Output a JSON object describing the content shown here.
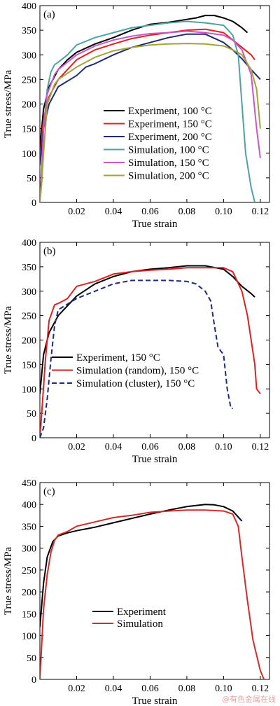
{
  "watermark": "@有色金属在线",
  "chart_data": [
    {
      "type": "line",
      "panel_label": "(a)",
      "xlabel": "True strain",
      "ylabel": "True stress/MPa",
      "xlim": [
        0,
        0.125
      ],
      "ylim": [
        0,
        400
      ],
      "x_ticks": [
        0.02,
        0.04,
        0.06,
        0.08,
        0.1,
        0.12
      ],
      "x_tick_labels": [
        "0.02",
        "0.04",
        "0.06",
        "0.08",
        "0.10",
        "0.12"
      ],
      "y_ticks": [
        0,
        50,
        100,
        150,
        200,
        250,
        300,
        350,
        400
      ],
      "y_tick_labels": [
        "0",
        "50",
        "100",
        "150",
        "200",
        "250",
        "300",
        "350",
        "400"
      ],
      "legend_position": "center",
      "series": [
        {
          "name": "Experiment, 100 °C",
          "color": "#000000",
          "style": "solid",
          "points": [
            [
              0,
              110
            ],
            [
              0.002,
              190
            ],
            [
              0.005,
              235
            ],
            [
              0.01,
              270
            ],
            [
              0.015,
              290
            ],
            [
              0.02,
              305
            ],
            [
              0.03,
              322
            ],
            [
              0.04,
              335
            ],
            [
              0.05,
              350
            ],
            [
              0.06,
              362
            ],
            [
              0.07,
              366
            ],
            [
              0.08,
              372
            ],
            [
              0.085,
              375
            ],
            [
              0.09,
              380
            ],
            [
              0.095,
              380
            ],
            [
              0.1,
              375
            ],
            [
              0.105,
              368
            ],
            [
              0.11,
              355
            ],
            [
              0.113,
              345
            ]
          ]
        },
        {
          "name": "Experiment, 150 °C",
          "color": "#e02020",
          "style": "solid",
          "points": [
            [
              0,
              90
            ],
            [
              0.002,
              170
            ],
            [
              0.005,
              215
            ],
            [
              0.01,
              250
            ],
            [
              0.02,
              290
            ],
            [
              0.03,
              310
            ],
            [
              0.04,
              322
            ],
            [
              0.05,
              333
            ],
            [
              0.06,
              340
            ],
            [
              0.07,
              345
            ],
            [
              0.08,
              350
            ],
            [
              0.09,
              352
            ],
            [
              0.1,
              345
            ],
            [
              0.105,
              330
            ],
            [
              0.11,
              315
            ],
            [
              0.115,
              300
            ],
            [
              0.117,
              290
            ]
          ]
        },
        {
          "name": "Experiment, 200 °C",
          "color": "#1f2a7a",
          "style": "solid",
          "points": [
            [
              0,
              75
            ],
            [
              0.002,
              150
            ],
            [
              0.005,
              200
            ],
            [
              0.01,
              235
            ],
            [
              0.02,
              258
            ],
            [
              0.025,
              275
            ],
            [
              0.03,
              282
            ],
            [
              0.04,
              300
            ],
            [
              0.05,
              315
            ],
            [
              0.06,
              325
            ],
            [
              0.07,
              335
            ],
            [
              0.08,
              342
            ],
            [
              0.09,
              342
            ],
            [
              0.1,
              325
            ],
            [
              0.105,
              310
            ],
            [
              0.11,
              292
            ],
            [
              0.115,
              270
            ],
            [
              0.12,
              250
            ]
          ]
        },
        {
          "name": "Simulation, 100 °C",
          "color": "#4fa3a3",
          "style": "solid",
          "points": [
            [
              0,
              0
            ],
            [
              0.001,
              60
            ],
            [
              0.002,
              150
            ],
            [
              0.004,
              230
            ],
            [
              0.006,
              265
            ],
            [
              0.008,
              280
            ],
            [
              0.01,
              285
            ],
            [
              0.015,
              300
            ],
            [
              0.02,
              320
            ],
            [
              0.03,
              335
            ],
            [
              0.04,
              345
            ],
            [
              0.05,
              355
            ],
            [
              0.06,
              360
            ],
            [
              0.07,
              365
            ],
            [
              0.08,
              368
            ],
            [
              0.09,
              365
            ],
            [
              0.1,
              360
            ],
            [
              0.105,
              340
            ],
            [
              0.108,
              300
            ],
            [
              0.11,
              200
            ],
            [
              0.112,
              100
            ],
            [
              0.115,
              30
            ],
            [
              0.117,
              0
            ]
          ]
        },
        {
          "name": "Simulation, 150 °C",
          "color": "#cc55cc",
          "style": "solid",
          "points": [
            [
              0,
              0
            ],
            [
              0.001,
              60
            ],
            [
              0.002,
              150
            ],
            [
              0.004,
              220
            ],
            [
              0.008,
              260
            ],
            [
              0.01,
              270
            ],
            [
              0.02,
              300
            ],
            [
              0.03,
              318
            ],
            [
              0.04,
              330
            ],
            [
              0.05,
              338
            ],
            [
              0.06,
              343
            ],
            [
              0.07,
              345
            ],
            [
              0.08,
              348
            ],
            [
              0.09,
              345
            ],
            [
              0.1,
              340
            ],
            [
              0.105,
              330
            ],
            [
              0.11,
              310
            ],
            [
              0.115,
              260
            ],
            [
              0.118,
              150
            ],
            [
              0.12,
              90
            ]
          ]
        },
        {
          "name": "Simulation, 200 °C",
          "color": "#a3a33a",
          "style": "solid",
          "points": [
            [
              0,
              0
            ],
            [
              0.001,
              40
            ],
            [
              0.002,
              100
            ],
            [
              0.004,
              200
            ],
            [
              0.008,
              240
            ],
            [
              0.01,
              250
            ],
            [
              0.02,
              275
            ],
            [
              0.03,
              295
            ],
            [
              0.04,
              308
            ],
            [
              0.05,
              315
            ],
            [
              0.06,
              320
            ],
            [
              0.07,
              322
            ],
            [
              0.08,
              323
            ],
            [
              0.09,
              322
            ],
            [
              0.1,
              318
            ],
            [
              0.105,
              310
            ],
            [
              0.11,
              300
            ],
            [
              0.115,
              270
            ],
            [
              0.118,
              230
            ],
            [
              0.12,
              150
            ]
          ]
        }
      ]
    },
    {
      "type": "line",
      "panel_label": "(b)",
      "xlabel": "True strain",
      "ylabel": "True stress/MPa",
      "xlim": [
        0,
        0.125
      ],
      "ylim": [
        0,
        400
      ],
      "x_ticks": [
        0.02,
        0.04,
        0.06,
        0.08,
        0.1,
        0.12
      ],
      "x_tick_labels": [
        "0.02",
        "0.04",
        "0.06",
        "0.08",
        "0.10",
        "0.12"
      ],
      "y_ticks": [
        0,
        50,
        100,
        150,
        200,
        250,
        300,
        350,
        400
      ],
      "y_tick_labels": [
        "0",
        "50",
        "100",
        "150",
        "200",
        "250",
        "300",
        "350",
        "400"
      ],
      "legend_position": "lower-center",
      "series": [
        {
          "name": "Experiment, 150 °C",
          "color": "#000000",
          "style": "solid",
          "points": [
            [
              0,
              90
            ],
            [
              0.002,
              170
            ],
            [
              0.005,
              215
            ],
            [
              0.01,
              250
            ],
            [
              0.02,
              290
            ],
            [
              0.03,
              315
            ],
            [
              0.04,
              330
            ],
            [
              0.05,
              340
            ],
            [
              0.06,
              345
            ],
            [
              0.07,
              348
            ],
            [
              0.08,
              352
            ],
            [
              0.09,
              352
            ],
            [
              0.1,
              345
            ],
            [
              0.105,
              330
            ],
            [
              0.11,
              310
            ],
            [
              0.115,
              295
            ],
            [
              0.117,
              288
            ]
          ]
        },
        {
          "name": "Simulation (random), 150 °C",
          "color": "#e02020",
          "style": "solid",
          "points": [
            [
              0,
              0
            ],
            [
              0.001,
              50
            ],
            [
              0.003,
              160
            ],
            [
              0.005,
              240
            ],
            [
              0.008,
              272
            ],
            [
              0.01,
              275
            ],
            [
              0.015,
              285
            ],
            [
              0.02,
              310
            ],
            [
              0.03,
              320
            ],
            [
              0.04,
              335
            ],
            [
              0.05,
              340
            ],
            [
              0.06,
              343
            ],
            [
              0.07,
              345
            ],
            [
              0.08,
              348
            ],
            [
              0.09,
              348
            ],
            [
              0.1,
              348
            ],
            [
              0.105,
              340
            ],
            [
              0.11,
              300
            ],
            [
              0.113,
              250
            ],
            [
              0.115,
              200
            ],
            [
              0.117,
              150
            ],
            [
              0.118,
              100
            ],
            [
              0.12,
              90
            ]
          ]
        },
        {
          "name": "Simulation (cluster), 150 °C",
          "color": "#1f2a7a",
          "style": "dashed",
          "points": [
            [
              0,
              0
            ],
            [
              0.002,
              20
            ],
            [
              0.004,
              80
            ],
            [
              0.006,
              160
            ],
            [
              0.008,
              230
            ],
            [
              0.01,
              262
            ],
            [
              0.02,
              285
            ],
            [
              0.03,
              300
            ],
            [
              0.04,
              315
            ],
            [
              0.05,
              322
            ],
            [
              0.06,
              322
            ],
            [
              0.07,
              322
            ],
            [
              0.08,
              320
            ],
            [
              0.085,
              315
            ],
            [
              0.09,
              300
            ],
            [
              0.093,
              280
            ],
            [
              0.095,
              230
            ],
            [
              0.097,
              185
            ],
            [
              0.1,
              170
            ],
            [
              0.102,
              100
            ],
            [
              0.103,
              80
            ],
            [
              0.104,
              60
            ],
            [
              0.105,
              60
            ]
          ]
        }
      ]
    },
    {
      "type": "line",
      "panel_label": "(c)",
      "xlabel": "True strain",
      "ylabel": "True stress/MPa",
      "xlim": [
        0,
        0.125
      ],
      "ylim": [
        0,
        450
      ],
      "x_ticks": [
        0.02,
        0.04,
        0.06,
        0.08,
        0.1,
        0.12
      ],
      "x_tick_labels": [
        "0.02",
        "0.04",
        "0.06",
        "0.08",
        "0.10",
        "0.12"
      ],
      "y_ticks": [
        0,
        50,
        100,
        150,
        200,
        250,
        300,
        350,
        400,
        450
      ],
      "y_tick_labels": [
        "0",
        "50",
        "100",
        "150",
        "200",
        "250",
        "300",
        "350",
        "400",
        "450"
      ],
      "legend_position": "lower-center",
      "series": [
        {
          "name": "Experiment",
          "color": "#000000",
          "style": "solid",
          "points": [
            [
              0,
              120
            ],
            [
              0.002,
              220
            ],
            [
              0.004,
              280
            ],
            [
              0.007,
              315
            ],
            [
              0.01,
              328
            ],
            [
              0.015,
              335
            ],
            [
              0.02,
              340
            ],
            [
              0.03,
              348
            ],
            [
              0.04,
              358
            ],
            [
              0.05,
              368
            ],
            [
              0.06,
              378
            ],
            [
              0.07,
              387
            ],
            [
              0.08,
              395
            ],
            [
              0.09,
              400
            ],
            [
              0.095,
              399
            ],
            [
              0.1,
              395
            ],
            [
              0.105,
              385
            ],
            [
              0.11,
              362
            ]
          ]
        },
        {
          "name": "Simulation",
          "color": "#d62a2a",
          "style": "solid",
          "points": [
            [
              0,
              0
            ],
            [
              0.001,
              80
            ],
            [
              0.002,
              160
            ],
            [
              0.004,
              240
            ],
            [
              0.006,
              290
            ],
            [
              0.008,
              318
            ],
            [
              0.01,
              330
            ],
            [
              0.015,
              338
            ],
            [
              0.02,
              350
            ],
            [
              0.03,
              360
            ],
            [
              0.04,
              370
            ],
            [
              0.05,
              375
            ],
            [
              0.06,
              382
            ],
            [
              0.07,
              385
            ],
            [
              0.08,
              387
            ],
            [
              0.09,
              387
            ],
            [
              0.1,
              385
            ],
            [
              0.105,
              378
            ],
            [
              0.108,
              350
            ],
            [
              0.11,
              280
            ],
            [
              0.113,
              180
            ],
            [
              0.116,
              90
            ],
            [
              0.12,
              20
            ],
            [
              0.122,
              0
            ]
          ]
        }
      ]
    }
  ]
}
